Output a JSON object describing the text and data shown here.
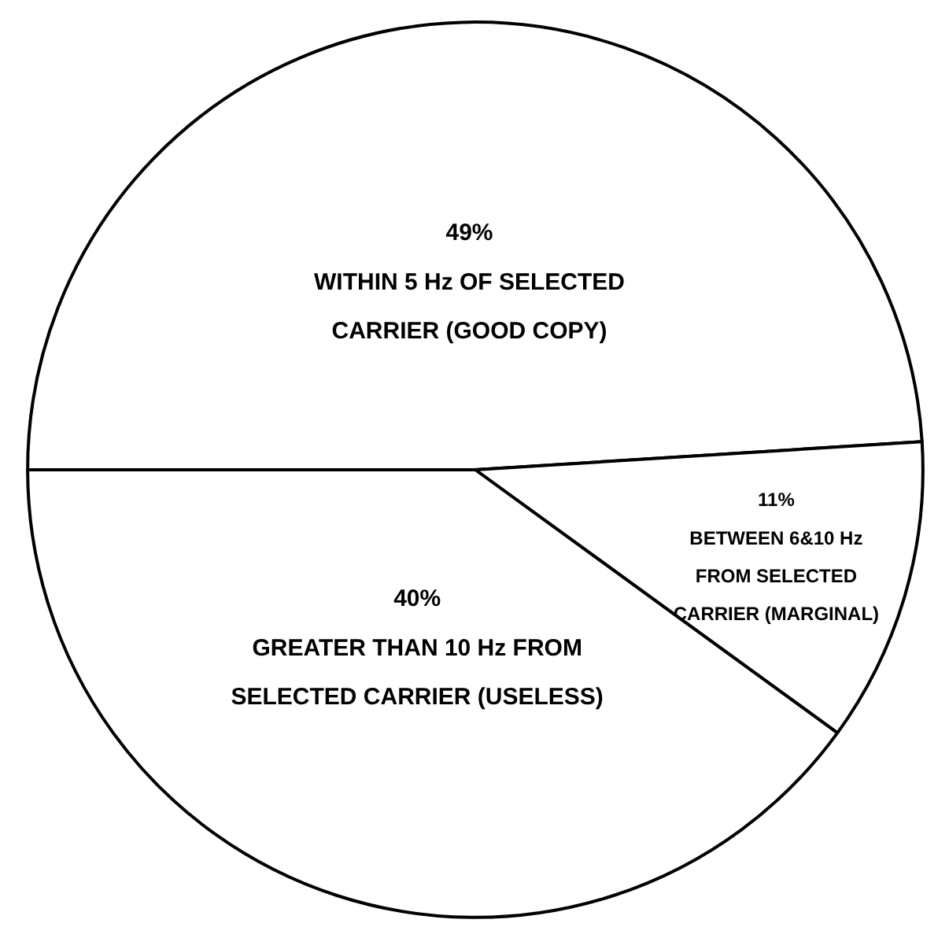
{
  "chart_data": {
    "type": "pie",
    "categories": [
      "WITHIN 5 Hz OF SELECTED CARRIER (GOOD COPY)",
      "BETWEEN 6&10 Hz FROM SELECTED CARRIER (MARGINAL)",
      "GREATER THAN 10 Hz FROM SELECTED CARRIER (USELESS)"
    ],
    "values": [
      49,
      11,
      40
    ],
    "value_labels": [
      "49%",
      "11%",
      "40%"
    ],
    "colors": [
      "#ffffff",
      "#ffffff",
      "#ffffff"
    ]
  }
}
